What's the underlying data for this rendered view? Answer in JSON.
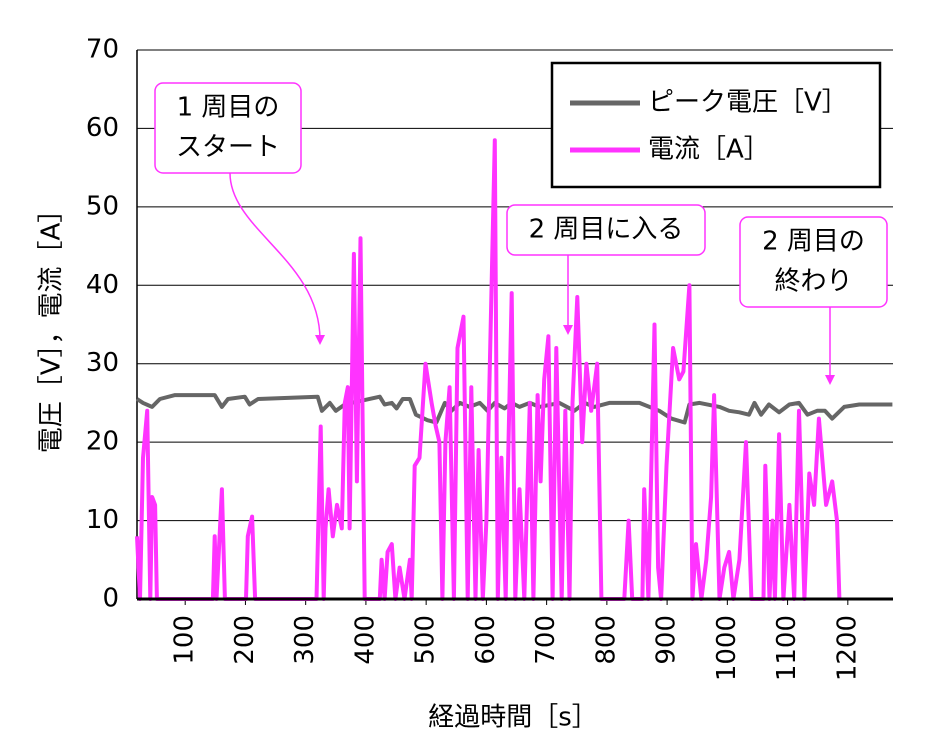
{
  "chart_data": {
    "type": "line",
    "xlabel": "経過時間［s］",
    "ylabel": "電圧［V］，電流［A］",
    "xlim": [
      20,
      1275
    ],
    "ylim": [
      0,
      70
    ],
    "xticks": [
      100,
      200,
      300,
      400,
      500,
      600,
      700,
      800,
      900,
      1000,
      1100,
      1200
    ],
    "yticks": [
      0,
      10,
      20,
      30,
      40,
      50,
      60,
      70
    ],
    "grid": true,
    "legend": "upper right",
    "series": [
      {
        "name": "ピーク電圧［V］",
        "color": "#666666",
        "x": [
          20,
          30,
          45,
          58,
          83,
          149,
          161,
          171,
          199,
          207,
          221,
          320,
          327,
          340,
          350,
          365,
          376,
          423,
          431,
          443,
          451,
          461,
          473,
          483,
          502,
          517,
          531,
          542,
          556,
          572,
          589,
          602,
          614,
          630,
          642,
          655,
          672,
          688,
          721,
          746,
          763,
          779,
          804,
          854,
          887,
          907,
          929,
          937,
          954,
          987,
          1003,
          1020,
          1036,
          1045,
          1056,
          1069,
          1086,
          1103,
          1119,
          1133,
          1149,
          1162,
          1174,
          1194,
          1219,
          1274
        ],
        "values": [
          25.5,
          25,
          24.5,
          25.5,
          26,
          26,
          24.5,
          25.5,
          25.8,
          24.8,
          25.5,
          25.8,
          24,
          25,
          24,
          24.8,
          25,
          25.8,
          24.8,
          25,
          24.3,
          25.5,
          25.5,
          23.5,
          22.8,
          22.5,
          25,
          24,
          25,
          24.5,
          25,
          24,
          25,
          24.3,
          25,
          24.5,
          25,
          24.5,
          25,
          24,
          25,
          24.5,
          25,
          25,
          24,
          23,
          22.5,
          24.8,
          25,
          24.5,
          24,
          23.8,
          23.5,
          25,
          23.5,
          24.8,
          23.8,
          24.8,
          25,
          23.5,
          24,
          24,
          23,
          24.5,
          24.8,
          24.8
        ]
      },
      {
        "name": "電流［A］",
        "color": "#ff33ff",
        "x": [
          20,
          25,
          30,
          37,
          42,
          45,
          50,
          53,
          146,
          149,
          152,
          161,
          166,
          201,
          204,
          211,
          216,
          318,
          325,
          330,
          333,
          338,
          345,
          352,
          360,
          365,
          370,
          373,
          380,
          385,
          391,
          398,
          423,
          426,
          431,
          436,
          443,
          449,
          456,
          464,
          473,
          476,
          481,
          489,
          499,
          509,
          516,
          522,
          527,
          532,
          539,
          546,
          552,
          562,
          569,
          575,
          582,
          587,
          594,
          600,
          614,
          619,
          625,
          632,
          635,
          642,
          648,
          655,
          663,
          672,
          678,
          685,
          690,
          696,
          703,
          710,
          716,
          725,
          731,
          738,
          743,
          751,
          759,
          766,
          774,
          784,
          791,
          829,
          836,
          842,
          859,
          862,
          869,
          879,
          885,
          890,
          899,
          910,
          920,
          927,
          937,
          942,
          948,
          957,
          965,
          973,
          978,
          987,
          995,
          1003,
          1010,
          1020,
          1031,
          1040,
          1060,
          1063,
          1070,
          1075,
          1079,
          1086,
          1093,
          1103,
          1111,
          1119,
          1128,
          1136,
          1144,
          1152,
          1164,
          1174,
          1182,
          1186
        ],
        "values": [
          8,
          0,
          18,
          24,
          0,
          13,
          12,
          0,
          0,
          8,
          0,
          14,
          0,
          0,
          8,
          10.5,
          0,
          0,
          22,
          0,
          9,
          14,
          8,
          12,
          9,
          25,
          27,
          9,
          44,
          15,
          46,
          0,
          0,
          5,
          0,
          6,
          7,
          0,
          4,
          0,
          5,
          0,
          17,
          18,
          30,
          25,
          22,
          20,
          0,
          20,
          27,
          0,
          32,
          36,
          0,
          27,
          0,
          19,
          0,
          10,
          58.5,
          0,
          18,
          0,
          14,
          39,
          0,
          14,
          0,
          25,
          0,
          26,
          15,
          28,
          33.5,
          0,
          32,
          0,
          24,
          0,
          25,
          38.5,
          20,
          30,
          24,
          30,
          0,
          0,
          10,
          0,
          0,
          14,
          0,
          35,
          4,
          0,
          17,
          32,
          28,
          29,
          40,
          0,
          7,
          0,
          5,
          13,
          26,
          0,
          4,
          6,
          0,
          5,
          20,
          0,
          0,
          17,
          0,
          10,
          0,
          21,
          0,
          12,
          0,
          24,
          0,
          16,
          12,
          23,
          12,
          15,
          10,
          0
        ]
      }
    ],
    "annotations": [
      {
        "lines": [
          "1 周目の",
          "スタート"
        ]
      },
      {
        "lines": [
          "2 周目に入る"
        ]
      },
      {
        "lines": [
          "2 周目の",
          "終わり"
        ]
      }
    ]
  }
}
